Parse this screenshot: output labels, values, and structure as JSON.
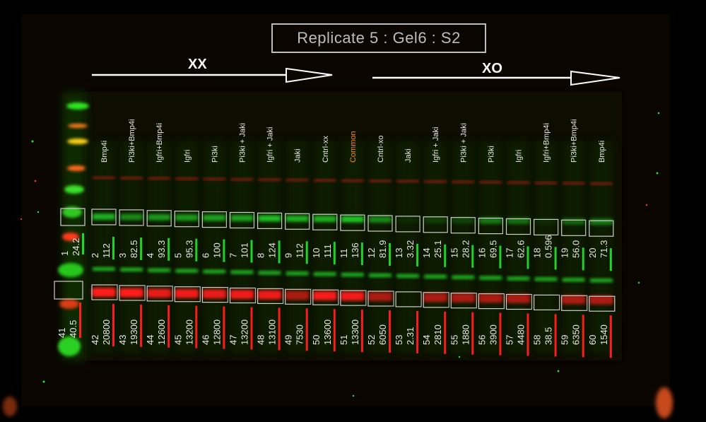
{
  "title": "Replicate 5 : Gel6 : S2",
  "groups": {
    "xx": "XX",
    "xo": "XO"
  },
  "colors": {
    "green": "#23d62a",
    "red": "#ff1e1e",
    "highlight": "#ff8c00",
    "box": "#cfcfcf",
    "text": "#e8e8e8"
  },
  "lanes": [
    {
      "label": "Bmp4i",
      "green_id": "2",
      "green_val": "112",
      "red_id": "42",
      "red_val": "20800",
      "color": "#e8e8e8"
    },
    {
      "label": "Pi3ki+Bmp4i",
      "green_id": "3",
      "green_val": "82.5",
      "red_id": "43",
      "red_val": "19300",
      "color": "#e8e8e8"
    },
    {
      "label": "Igfri+Bmp4i",
      "green_id": "4",
      "green_val": "93.3",
      "red_id": "44",
      "red_val": "12600",
      "color": "#e8e8e8"
    },
    {
      "label": "Igfri",
      "green_id": "5",
      "green_val": "95.3",
      "red_id": "45",
      "red_val": "13200",
      "color": "#e8e8e8"
    },
    {
      "label": "Pi3ki",
      "green_id": "6",
      "green_val": "100",
      "red_id": "46",
      "red_val": "12800",
      "color": "#e8e8e8"
    },
    {
      "label": "Pi3ki + Jaki",
      "green_id": "7",
      "green_val": "101",
      "red_id": "47",
      "red_val": "13200",
      "color": "#e8e8e8"
    },
    {
      "label": "Igfri + Jaki",
      "green_id": "8",
      "green_val": "124",
      "red_id": "48",
      "red_val": "13100",
      "color": "#e8e8e8"
    },
    {
      "label": "Jaki",
      "green_id": "9",
      "green_val": "112",
      "red_id": "49",
      "red_val": "7530",
      "color": "#e8e8e8"
    },
    {
      "label": "Cntrl-xx",
      "green_id": "10",
      "green_val": "111",
      "red_id": "50",
      "red_val": "13600",
      "color": "#e8e8e8"
    },
    {
      "label": "Common",
      "green_id": "11",
      "green_val": "136",
      "red_id": "51",
      "red_val": "13300",
      "color": "#ff8c00"
    },
    {
      "label": "Cntrl-xo",
      "green_id": "12",
      "green_val": "81.9",
      "red_id": "52",
      "red_val": "6050",
      "color": "#e8e8e8"
    },
    {
      "label": "Jaki",
      "green_id": "13",
      "green_val": "3.32",
      "red_id": "53",
      "red_val": "2.31",
      "color": "#e8e8e8"
    },
    {
      "label": "Igfri + Jaki",
      "green_id": "14",
      "green_val": "25.1",
      "red_id": "54",
      "red_val": "2810",
      "color": "#e8e8e8"
    },
    {
      "label": "Pi3ki + Jaki",
      "green_id": "15",
      "green_val": "28.2",
      "red_id": "55",
      "red_val": "1880",
      "color": "#e8e8e8"
    },
    {
      "label": "Pi3ki",
      "green_id": "16",
      "green_val": "69.5",
      "red_id": "56",
      "red_val": "3900",
      "color": "#e8e8e8"
    },
    {
      "label": "Igfri",
      "green_id": "17",
      "green_val": "62.6",
      "red_id": "57",
      "red_val": "4480",
      "color": "#e8e8e8"
    },
    {
      "label": "Igfri+Bmp4i",
      "green_id": "18",
      "green_val": "0.596",
      "red_id": "58",
      "red_val": "38.5",
      "color": "#e8e8e8"
    },
    {
      "label": "Pi3ki+Bmp4i",
      "green_id": "19",
      "green_val": "56.0",
      "red_id": "59",
      "red_val": "6350",
      "color": "#e8e8e8"
    },
    {
      "label": "Bmp4i",
      "green_id": "20",
      "green_val": "71.3",
      "red_id": "60",
      "red_val": "1540",
      "color": "#e8e8e8"
    }
  ],
  "ladder": {
    "green_id": "1",
    "green_val": "24.2",
    "red_id": "41",
    "red_val": "40.5"
  }
}
